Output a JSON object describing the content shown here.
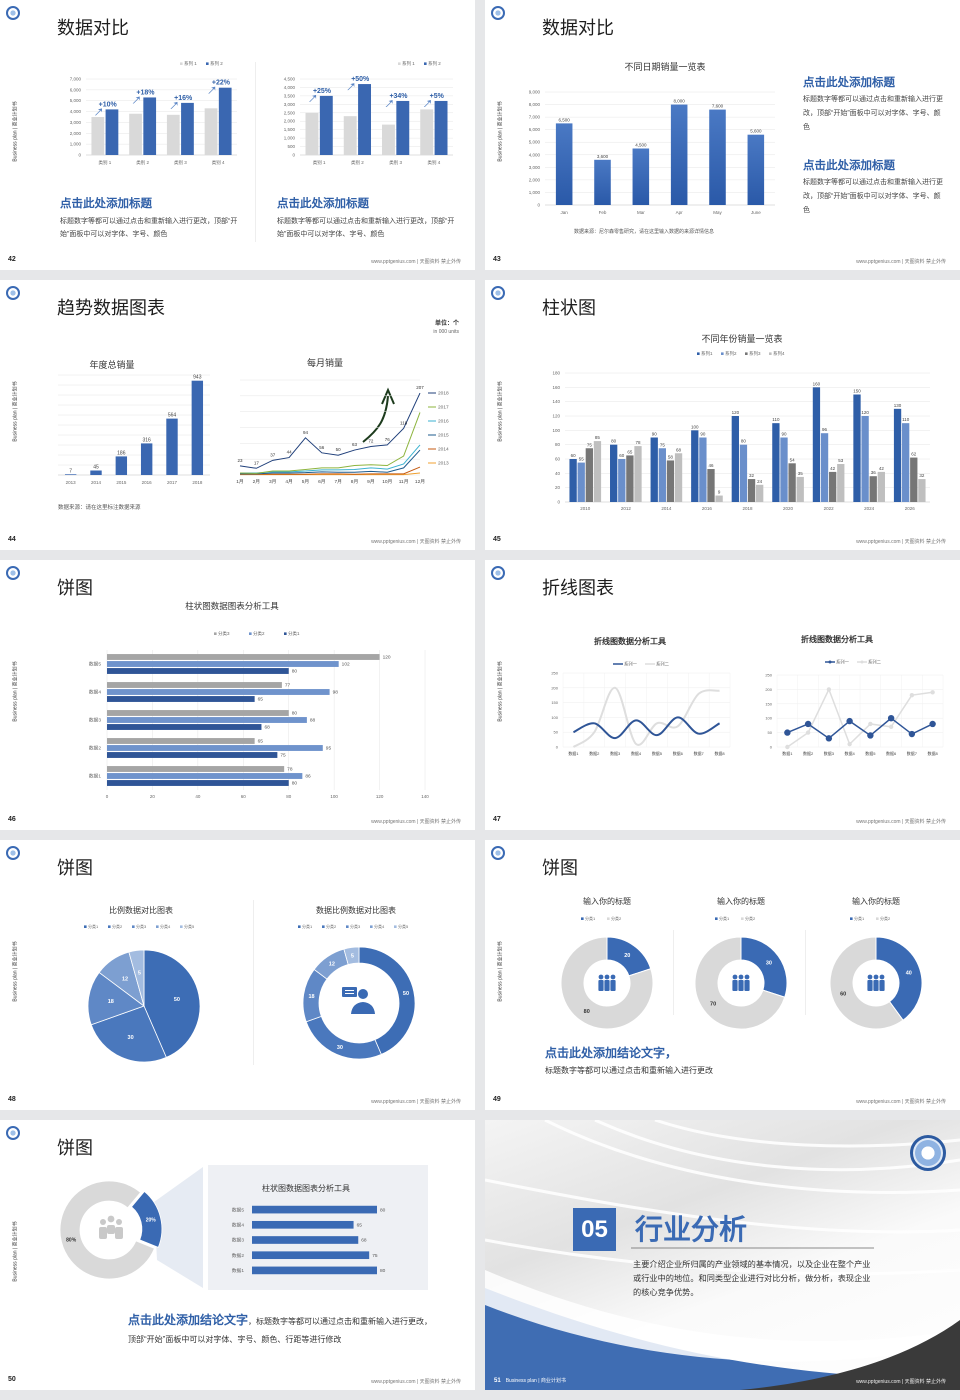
{
  "common": {
    "side_text": "Business plan | 商业计划书",
    "footer": "www.pptgenius.com | 天图资料 禁止外传",
    "brand_blue": "#3a6ab4",
    "logo_icon": "handshake-seal-logo"
  },
  "slides": [
    {
      "page": "42",
      "title": "数据对比",
      "blocks": [
        {
          "heading": "点击此处添加标题",
          "body": "标题数字等都可以通过点击和重新输入进行更改，顶部“开始”面板中可以对字体、字号、颜色"
        },
        {
          "heading": "点击此处添加标题",
          "body": "标题数字等都可以通过点击和重新输入进行更改，顶部“开始”面板中可以对字体、字号、颜色"
        }
      ]
    },
    {
      "page": "43",
      "title": "数据对比",
      "chart_title": "不同日期销量一览表",
      "source": "数据来源：尼尔森零售研究，请在这里输入数据的来源详情信息",
      "blocks": [
        {
          "heading": "点击此处添加标题",
          "body": "标题数字等都可以通过点击和重新输入进行更改，顶部“开始”面板中可以对字体、字号、颜色"
        },
        {
          "heading": "点击此处添加标题",
          "body": "标题数字等都可以通过点击和重新输入进行更改，顶部“开始”面板中可以对字体、字号、颜色"
        }
      ]
    },
    {
      "page": "44",
      "title": "趋势数据图表",
      "unit": "单位：个",
      "unit_en": "in 000 units",
      "chart_title_left": "年度总销量",
      "chart_title_right": "每月销量",
      "source": "数据来源：请在这里标注数据来源"
    },
    {
      "page": "45",
      "title": "柱状图",
      "chart_title": "不同年份销量一览表"
    },
    {
      "page": "46",
      "title": "饼图",
      "chart_title": "柱状图数据图表分析工具"
    },
    {
      "page": "47",
      "title": "折线图表",
      "chart_title_left": "折线图数据分析工具",
      "chart_title_right": "折线图数据分析工具"
    },
    {
      "page": "48",
      "title": "饼图",
      "chart_title_left": "比例数据对比图表",
      "chart_title_right": "数据比例数据对比图表"
    },
    {
      "page": "49",
      "title": "饼图",
      "chart_titles": [
        "输入你的标题",
        "输入你的标题",
        "输入你的标题"
      ],
      "conclusion": "点击此处添加结论文字，",
      "body": "标题数字等都可以通过点击和重新输入进行更改"
    },
    {
      "page": "50",
      "title": "饼图",
      "panel_title": "柱状图数据图表分析工具",
      "conclusion": "点击此处添加结论文字",
      "body": "，标题数字等都可以通过点击和重新输入进行更改，顶部“开始”面板中可以对字体、字号、颜色、行距等进行修改"
    },
    {
      "page": "51",
      "number": "05",
      "title": "行业分析",
      "body": "主要介绍企业所归属的产业领域的基本情况，以及企业在整个产业或行业中的地位。和同类型企业进行对比分析，做分析，表现企业的核心竞争优势。",
      "footer_left": "Business plan | 商业计划书"
    }
  ],
  "chart_data": [
    {
      "type": "bar",
      "categories": [
        "类别 1",
        "类别 2",
        "类别 3",
        "类别 4"
      ],
      "series": [
        {
          "name": "系列 1",
          "values": [
            3500,
            3800,
            3700,
            4300
          ]
        },
        {
          "name": "系列 2",
          "values": [
            4200,
            5300,
            4800,
            6200
          ]
        }
      ],
      "annotations": [
        "+10%",
        "+18%",
        "+16%",
        "+22%"
      ],
      "ylim": [
        0,
        7000
      ],
      "yticks": [
        "0",
        "1,000",
        "2,000",
        "3,000",
        "4,000",
        "5,000",
        "6,000",
        "7,000"
      ],
      "legend": "top-right",
      "grid": true
    },
    {
      "type": "bar",
      "categories": [
        "类别 1",
        "类别 2",
        "类别 3",
        "类别 4"
      ],
      "series": [
        {
          "name": "系列 1",
          "values": [
            2500,
            2300,
            1800,
            2700
          ]
        },
        {
          "name": "系列 2",
          "values": [
            3500,
            4200,
            3200,
            3200
          ]
        }
      ],
      "annotations": [
        "+25%",
        "+50%",
        "+34%",
        "+5%"
      ],
      "ylim": [
        0,
        4500
      ],
      "yticks": [
        "0",
        "500",
        "1,000",
        "1,500",
        "2,000",
        "2,500",
        "3,000",
        "3,500",
        "4,000",
        "4,500"
      ],
      "legend": "top-right",
      "grid": true
    },
    {
      "type": "bar",
      "title": "不同日期销量一览表",
      "categories": [
        "Jan",
        "Feb",
        "Mar",
        "Apr",
        "May",
        "June"
      ],
      "series": [
        {
          "values": [
            6500,
            3600,
            4500,
            8000,
            7600,
            5600
          ]
        }
      ],
      "data_labels": [
        "6,500",
        "3,600",
        "4,500",
        "8,000",
        "7,600",
        "5,600"
      ],
      "ylim": [
        0,
        9000
      ],
      "yticks": [
        "0",
        "1,000",
        "2,000",
        "3,000",
        "4,000",
        "5,000",
        "6,000",
        "7,000",
        "8,000",
        "9,000"
      ],
      "grid": true
    },
    {
      "type": "bar",
      "title": "年度总销量",
      "categories": [
        "2013",
        "2014",
        "2015",
        "2016",
        "2017",
        "2018"
      ],
      "series": [
        {
          "values": [
            7,
            45,
            186,
            316,
            564,
            943
          ]
        }
      ],
      "ylim": [
        0,
        1000
      ],
      "grid": true
    },
    {
      "type": "line",
      "title": "每月销量",
      "categories": [
        "1月",
        "2月",
        "3月",
        "4月",
        "5月",
        "6月",
        "7月",
        "8月",
        "9月",
        "10月",
        "11月",
        "12月"
      ],
      "series": [
        {
          "name": "2018",
          "values": [
            23,
            17,
            37,
            44,
            94,
            56,
            50,
            63,
            72,
            76,
            118,
            207
          ],
          "color": "#1f3f7a"
        },
        {
          "name": "2017",
          "values": [
            5,
            4,
            10,
            10,
            14,
            18,
            18,
            24,
            26,
            24,
            48,
            158
          ],
          "color": "#8db43e"
        },
        {
          "name": "2016",
          "values": [
            5,
            5,
            8,
            8,
            10,
            13,
            13,
            14,
            18,
            15,
            28,
            76
          ],
          "color": "#3bb2d0"
        },
        {
          "name": "2015",
          "values": [
            3,
            3,
            5,
            5,
            6,
            8,
            7,
            7,
            9,
            7,
            18,
            63
          ],
          "color": "#1e5b8e"
        },
        {
          "name": "2014",
          "values": [
            2,
            2,
            2,
            2,
            2,
            3,
            3,
            2,
            3,
            3,
            3,
            20
          ],
          "color": "#c55a11"
        },
        {
          "name": "2013",
          "values": [
            1,
            1,
            1,
            1,
            1,
            1,
            1,
            1,
            1,
            1,
            1,
            5
          ],
          "color": "#f0a030"
        }
      ],
      "ylim": [
        0,
        240
      ],
      "grid": true,
      "legend": "right"
    },
    {
      "type": "bar",
      "title": "不同年份销量一览表",
      "categories": [
        "2010",
        "2012",
        "2014",
        "2016",
        "2018",
        "2020",
        "2022",
        "2024",
        "2026"
      ],
      "series": [
        {
          "name": "系列1",
          "values": [
            60,
            80,
            90,
            100,
            120,
            110,
            160,
            150,
            130
          ]
        },
        {
          "name": "系列2",
          "values": [
            55,
            60,
            75,
            90,
            80,
            90,
            96,
            120,
            110
          ]
        },
        {
          "name": "系列3",
          "values": [
            75,
            65,
            58,
            46,
            32,
            54,
            42,
            36,
            62
          ]
        },
        {
          "name": "系列4",
          "values": [
            85,
            78,
            68,
            9,
            24,
            35,
            53,
            42,
            32
          ]
        }
      ],
      "ylim": [
        0,
        180
      ],
      "yticks": [
        "0",
        "20",
        "40",
        "60",
        "80",
        "100",
        "120",
        "140",
        "160",
        "180"
      ],
      "legend": "top",
      "grid": true
    },
    {
      "type": "bar",
      "orientation": "horizontal",
      "title": "柱状图数据图表分析工具",
      "categories": [
        "数据1",
        "数据2",
        "数据3",
        "数据4",
        "数据5"
      ],
      "series": [
        {
          "name": "分类3",
          "values": [
            78,
            65,
            80,
            77,
            120
          ]
        },
        {
          "name": "分类2",
          "values": [
            86,
            95,
            88,
            98,
            102
          ]
        },
        {
          "name": "分类1",
          "values": [
            80,
            75,
            68,
            65,
            80
          ]
        }
      ],
      "xlim": [
        0,
        140
      ],
      "xticks": [
        "0",
        "20",
        "40",
        "60",
        "80",
        "100",
        "120",
        "140"
      ],
      "legend": "top",
      "grid": true
    },
    {
      "type": "line",
      "title": "折线图数据分析工具",
      "categories": [
        "数据1",
        "数据2",
        "数据3",
        "数据4",
        "数据5",
        "数据6",
        "数据7",
        "数据8"
      ],
      "series": [
        {
          "name": "系列一",
          "values": [
            50,
            80,
            30,
            90,
            40,
            100,
            45,
            80
          ]
        },
        {
          "name": "系列二",
          "values": [
            0,
            50,
            200,
            10,
            80,
            70,
            180,
            190
          ]
        }
      ],
      "ylim": [
        0,
        250
      ],
      "yticks": [
        "0",
        "50",
        "100",
        "150",
        "200",
        "250"
      ],
      "smooth": true,
      "legend": "top"
    },
    {
      "type": "line",
      "title": "折线图数据分析工具",
      "categories": [
        "数据1",
        "数据2",
        "数据3",
        "数据4",
        "数据5",
        "数据6",
        "数据7",
        "数据8"
      ],
      "series": [
        {
          "name": "系列一",
          "values": [
            50,
            80,
            30,
            90,
            40,
            100,
            45,
            80
          ]
        },
        {
          "name": "系列二",
          "values": [
            0,
            50,
            200,
            10,
            80,
            70,
            180,
            190
          ]
        }
      ],
      "ylim": [
        0,
        250
      ],
      "yticks": [
        "0",
        "50",
        "100",
        "150",
        "200",
        "250"
      ],
      "markers": true,
      "legend": "top"
    },
    {
      "type": "pie",
      "title": "比例数据对比图表",
      "categories": [
        "分类1",
        "分类2",
        "分类3",
        "分类4",
        "分类5"
      ],
      "values": [
        50,
        30,
        18,
        12,
        5
      ],
      "legend": "top"
    },
    {
      "type": "pie",
      "donut": true,
      "title": "数据比例数据对比图表",
      "categories": [
        "分类1",
        "分类2",
        "分类3",
        "分类4",
        "分类5"
      ],
      "values": [
        50,
        30,
        18,
        12,
        5
      ],
      "legend": "top",
      "center_icon": "person-chat-icon"
    },
    {
      "type": "pie",
      "donut": true,
      "title": "输入你的标题",
      "categories": [
        "分类1",
        "分类2"
      ],
      "values": [
        20,
        80
      ],
      "center_icon": "team-icon"
    },
    {
      "type": "pie",
      "donut": true,
      "title": "输入你的标题",
      "categories": [
        "分类1",
        "分类2"
      ],
      "values": [
        30,
        70
      ],
      "center_icon": "team-icon"
    },
    {
      "type": "pie",
      "donut": true,
      "title": "输入你的标题",
      "categories": [
        "分类1",
        "分类2"
      ],
      "values": [
        40,
        60
      ],
      "center_icon": "team-icon"
    },
    {
      "type": "pie",
      "donut": true,
      "values": [
        80,
        20
      ],
      "labels": [
        "80%",
        "20%"
      ],
      "center_icon": "team-idea-icon"
    },
    {
      "type": "bar",
      "orientation": "horizontal",
      "title": "柱状图数据图表分析工具",
      "categories": [
        "数据1",
        "数据2",
        "数据3",
        "数据4",
        "数据5"
      ],
      "series": [
        {
          "values": [
            80,
            75,
            68,
            65,
            80
          ]
        }
      ],
      "xlim": [
        0,
        80
      ]
    }
  ]
}
